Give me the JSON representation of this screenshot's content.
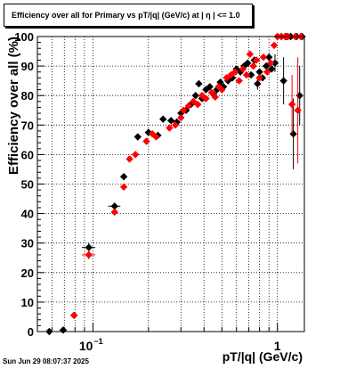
{
  "title": "Efficiency over all for Primary vs pT/|q| (GeV/c) at |  η  | <= 1.0",
  "timestamp": "Sun Jun 29 08:07:37 2025",
  "chart_data": {
    "type": "scatter",
    "title": "Efficiency over all for Primary vs pT/|q| (GeV/c) at |  η  | <= 1.0",
    "xlabel": "pT/|q| (GeV/c)",
    "ylabel": "Efficiency over all (%)",
    "xscale": "log",
    "xlim": [
      0.05,
      1.4
    ],
    "ylim": [
      0,
      100
    ],
    "yticks": [
      0,
      10,
      20,
      30,
      40,
      50,
      60,
      70,
      80,
      90,
      100
    ],
    "xtick_labels": [
      {
        "x": 0.1,
        "base": "10",
        "exp": "−1"
      },
      {
        "x": 1,
        "base": "1",
        "exp": ""
      }
    ],
    "grid": true,
    "colors": {
      "black_series": "#000000",
      "red_series": "#ff0000"
    },
    "series": [
      {
        "color": "#000000",
        "marker": "diamond",
        "points": [
          {
            "x": 0.058,
            "y": 0,
            "xerr": 0.003
          },
          {
            "x": 0.069,
            "y": 0.5,
            "xerr": 0.003
          },
          {
            "x": 0.079,
            "y": 5.5,
            "yerr": 0.8
          },
          {
            "x": 0.095,
            "y": 28.5,
            "xerr": 0.008,
            "yerr": 1.5
          },
          {
            "x": 0.131,
            "y": 42.5,
            "xerr": 0.01,
            "yerr": 1.0
          },
          {
            "x": 0.147,
            "y": 52.5,
            "yerr": 1.0
          },
          {
            "x": 0.175,
            "y": 66
          },
          {
            "x": 0.2,
            "y": 67.5
          },
          {
            "x": 0.225,
            "y": 66.5
          },
          {
            "x": 0.24,
            "y": 72
          },
          {
            "x": 0.265,
            "y": 71.5
          },
          {
            "x": 0.285,
            "y": 71
          },
          {
            "x": 0.3,
            "y": 74
          },
          {
            "x": 0.32,
            "y": 75
          },
          {
            "x": 0.34,
            "y": 77
          },
          {
            "x": 0.36,
            "y": 80
          },
          {
            "x": 0.375,
            "y": 84
          },
          {
            "x": 0.39,
            "y": 79
          },
          {
            "x": 0.41,
            "y": 82
          },
          {
            "x": 0.43,
            "y": 83
          },
          {
            "x": 0.45,
            "y": 80.5
          },
          {
            "x": 0.47,
            "y": 82
          },
          {
            "x": 0.49,
            "y": 84.5
          },
          {
            "x": 0.51,
            "y": 83
          },
          {
            "x": 0.54,
            "y": 85
          },
          {
            "x": 0.57,
            "y": 86
          },
          {
            "x": 0.6,
            "y": 89
          },
          {
            "x": 0.63,
            "y": 88
          },
          {
            "x": 0.66,
            "y": 90
          },
          {
            "x": 0.69,
            "y": 91
          },
          {
            "x": 0.72,
            "y": 87
          },
          {
            "x": 0.75,
            "y": 92
          },
          {
            "x": 0.78,
            "y": 84,
            "yerr": 2
          },
          {
            "x": 0.8,
            "y": 88
          },
          {
            "x": 0.83,
            "y": 86
          },
          {
            "x": 0.87,
            "y": 90
          },
          {
            "x": 0.9,
            "y": 93
          },
          {
            "x": 0.93,
            "y": 89
          },
          {
            "x": 0.97,
            "y": 91,
            "yerr": 3
          },
          {
            "x": 1.0,
            "y": 100
          },
          {
            "x": 1.05,
            "y": 100
          },
          {
            "x": 1.08,
            "y": 85,
            "yerr": 8
          },
          {
            "x": 1.12,
            "y": 100
          },
          {
            "x": 1.18,
            "y": 100
          },
          {
            "x": 1.22,
            "y": 67,
            "yerr": 12
          },
          {
            "x": 1.27,
            "y": 100
          },
          {
            "x": 1.32,
            "y": 80,
            "yerr": 10
          },
          {
            "x": 1.36,
            "y": 100
          }
        ]
      },
      {
        "color": "#ff0000",
        "marker": "diamond",
        "points": [
          {
            "x": 0.079,
            "y": 5.5,
            "yerr": 0.8
          },
          {
            "x": 0.095,
            "y": 26,
            "xerr": 0.008,
            "yerr": 1.5
          },
          {
            "x": 0.131,
            "y": 40.5,
            "yerr": 1.0
          },
          {
            "x": 0.147,
            "y": 49,
            "yerr": 1.0
          },
          {
            "x": 0.158,
            "y": 58.5
          },
          {
            "x": 0.17,
            "y": 60
          },
          {
            "x": 0.195,
            "y": 64.5
          },
          {
            "x": 0.21,
            "y": 67
          },
          {
            "x": 0.22,
            "y": 66
          },
          {
            "x": 0.26,
            "y": 69
          },
          {
            "x": 0.28,
            "y": 70
          },
          {
            "x": 0.3,
            "y": 72.5
          },
          {
            "x": 0.31,
            "y": 75
          },
          {
            "x": 0.33,
            "y": 76.5
          },
          {
            "x": 0.35,
            "y": 78
          },
          {
            "x": 0.37,
            "y": 77
          },
          {
            "x": 0.39,
            "y": 80
          },
          {
            "x": 0.41,
            "y": 79
          },
          {
            "x": 0.44,
            "y": 81
          },
          {
            "x": 0.46,
            "y": 79.5
          },
          {
            "x": 0.48,
            "y": 83
          },
          {
            "x": 0.5,
            "y": 82
          },
          {
            "x": 0.53,
            "y": 86
          },
          {
            "x": 0.56,
            "y": 87
          },
          {
            "x": 0.59,
            "y": 88
          },
          {
            "x": 0.62,
            "y": 85
          },
          {
            "x": 0.65,
            "y": 89
          },
          {
            "x": 0.68,
            "y": 87
          },
          {
            "x": 0.71,
            "y": 94
          },
          {
            "x": 0.74,
            "y": 90
          },
          {
            "x": 0.77,
            "y": 92
          },
          {
            "x": 0.8,
            "y": 86
          },
          {
            "x": 0.84,
            "y": 93
          },
          {
            "x": 0.88,
            "y": 88
          },
          {
            "x": 0.92,
            "y": 91
          },
          {
            "x": 0.96,
            "y": 97
          },
          {
            "x": 1.0,
            "y": 100
          },
          {
            "x": 1.05,
            "y": 100
          },
          {
            "x": 1.1,
            "y": 100
          },
          {
            "x": 1.14,
            "y": 100
          },
          {
            "x": 1.2,
            "y": 77,
            "yerr": 10
          },
          {
            "x": 1.25,
            "y": 100
          },
          {
            "x": 1.29,
            "y": 75,
            "yerr": 18
          },
          {
            "x": 1.34,
            "y": 100
          }
        ]
      }
    ]
  }
}
